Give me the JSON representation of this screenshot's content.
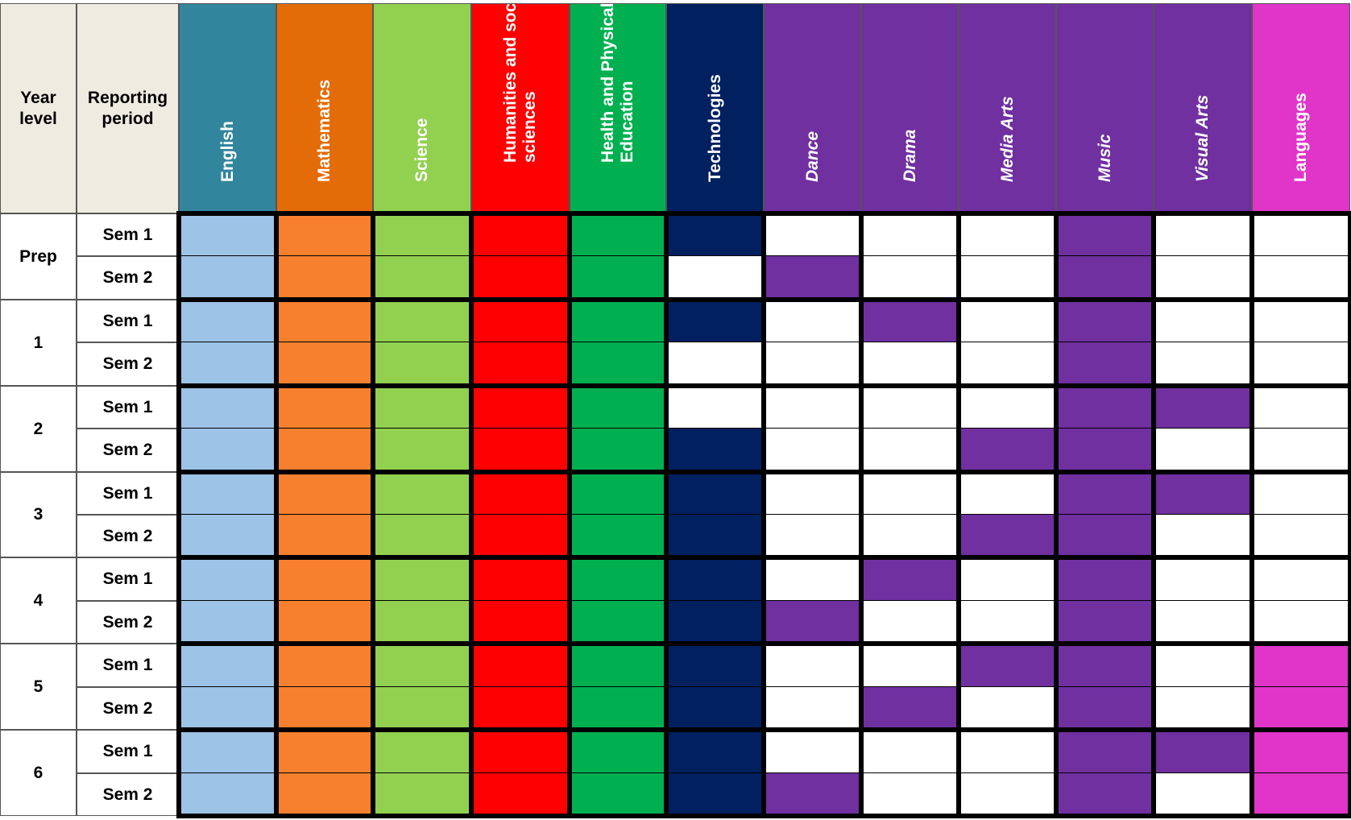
{
  "header": {
    "year_level": "Year\nlevel",
    "reporting_period": "Reporting\nperiod"
  },
  "colors": {
    "off": "#ffffff",
    "header_bg": "#eeebe0"
  },
  "subjects": [
    {
      "name": "English",
      "header_color": "#31859c",
      "fill": "#9dc3e6",
      "italic": false
    },
    {
      "name": "Mathematics",
      "header_color": "#e36c09",
      "fill": "#f6802e",
      "italic": false
    },
    {
      "name": "Science",
      "header_color": "#92d050",
      "fill": "#92d050",
      "italic": false
    },
    {
      "name": "Humanities and social\nsciences",
      "header_color": "#ff0000",
      "fill": "#ff0000",
      "italic": false
    },
    {
      "name": "Health and Physical\nEducation",
      "header_color": "#00b050",
      "fill": "#00b050",
      "italic": false
    },
    {
      "name": "Technologies",
      "header_color": "#002060",
      "fill": "#002060",
      "italic": false
    },
    {
      "name": "Dance",
      "header_color": "#7030a0",
      "fill": "#7030a0",
      "italic": true
    },
    {
      "name": "Drama",
      "header_color": "#7030a0",
      "fill": "#7030a0",
      "italic": true
    },
    {
      "name": "Media Arts",
      "header_color": "#7030a0",
      "fill": "#7030a0",
      "italic": true
    },
    {
      "name": "Music",
      "header_color": "#7030a0",
      "fill": "#7030a0",
      "italic": true
    },
    {
      "name": "Visual Arts",
      "header_color": "#7030a0",
      "fill": "#7030a0",
      "italic": true
    },
    {
      "name": "Languages",
      "header_color": "#e035c8",
      "fill": "#e035c8",
      "italic": false
    }
  ],
  "years": [
    {
      "label": "Prep",
      "periods": [
        {
          "label": "Sem 1",
          "reported": [
            1,
            1,
            1,
            1,
            1,
            1,
            0,
            0,
            0,
            1,
            0,
            0
          ]
        },
        {
          "label": "Sem 2",
          "reported": [
            1,
            1,
            1,
            1,
            1,
            0,
            1,
            0,
            0,
            1,
            0,
            0
          ]
        }
      ]
    },
    {
      "label": "1",
      "periods": [
        {
          "label": "Sem 1",
          "reported": [
            1,
            1,
            1,
            1,
            1,
            1,
            0,
            1,
            0,
            1,
            0,
            0
          ]
        },
        {
          "label": "Sem 2",
          "reported": [
            1,
            1,
            1,
            1,
            1,
            0,
            0,
            0,
            0,
            1,
            0,
            0
          ]
        }
      ]
    },
    {
      "label": "2",
      "periods": [
        {
          "label": "Sem 1",
          "reported": [
            1,
            1,
            1,
            1,
            1,
            0,
            0,
            0,
            0,
            1,
            1,
            0
          ]
        },
        {
          "label": "Sem 2",
          "reported": [
            1,
            1,
            1,
            1,
            1,
            1,
            0,
            0,
            1,
            1,
            0,
            0
          ]
        }
      ]
    },
    {
      "label": "3",
      "periods": [
        {
          "label": "Sem 1",
          "reported": [
            1,
            1,
            1,
            1,
            1,
            1,
            0,
            0,
            0,
            1,
            1,
            0
          ]
        },
        {
          "label": "Sem 2",
          "reported": [
            1,
            1,
            1,
            1,
            1,
            1,
            0,
            0,
            1,
            1,
            0,
            0
          ]
        }
      ]
    },
    {
      "label": "4",
      "periods": [
        {
          "label": "Sem 1",
          "reported": [
            1,
            1,
            1,
            1,
            1,
            1,
            0,
            1,
            0,
            1,
            0,
            0
          ]
        },
        {
          "label": "Sem 2",
          "reported": [
            1,
            1,
            1,
            1,
            1,
            1,
            1,
            0,
            0,
            1,
            0,
            0
          ]
        }
      ]
    },
    {
      "label": "5",
      "periods": [
        {
          "label": "Sem 1",
          "reported": [
            1,
            1,
            1,
            1,
            1,
            1,
            0,
            0,
            1,
            1,
            0,
            1
          ]
        },
        {
          "label": "Sem 2",
          "reported": [
            1,
            1,
            1,
            1,
            1,
            1,
            0,
            1,
            0,
            1,
            0,
            1
          ]
        }
      ]
    },
    {
      "label": "6",
      "periods": [
        {
          "label": "Sem 1",
          "reported": [
            1,
            1,
            1,
            1,
            1,
            1,
            0,
            0,
            0,
            1,
            1,
            1
          ]
        },
        {
          "label": "Sem 2",
          "reported": [
            1,
            1,
            1,
            1,
            1,
            1,
            1,
            0,
            0,
            1,
            0,
            1
          ]
        }
      ]
    }
  ]
}
